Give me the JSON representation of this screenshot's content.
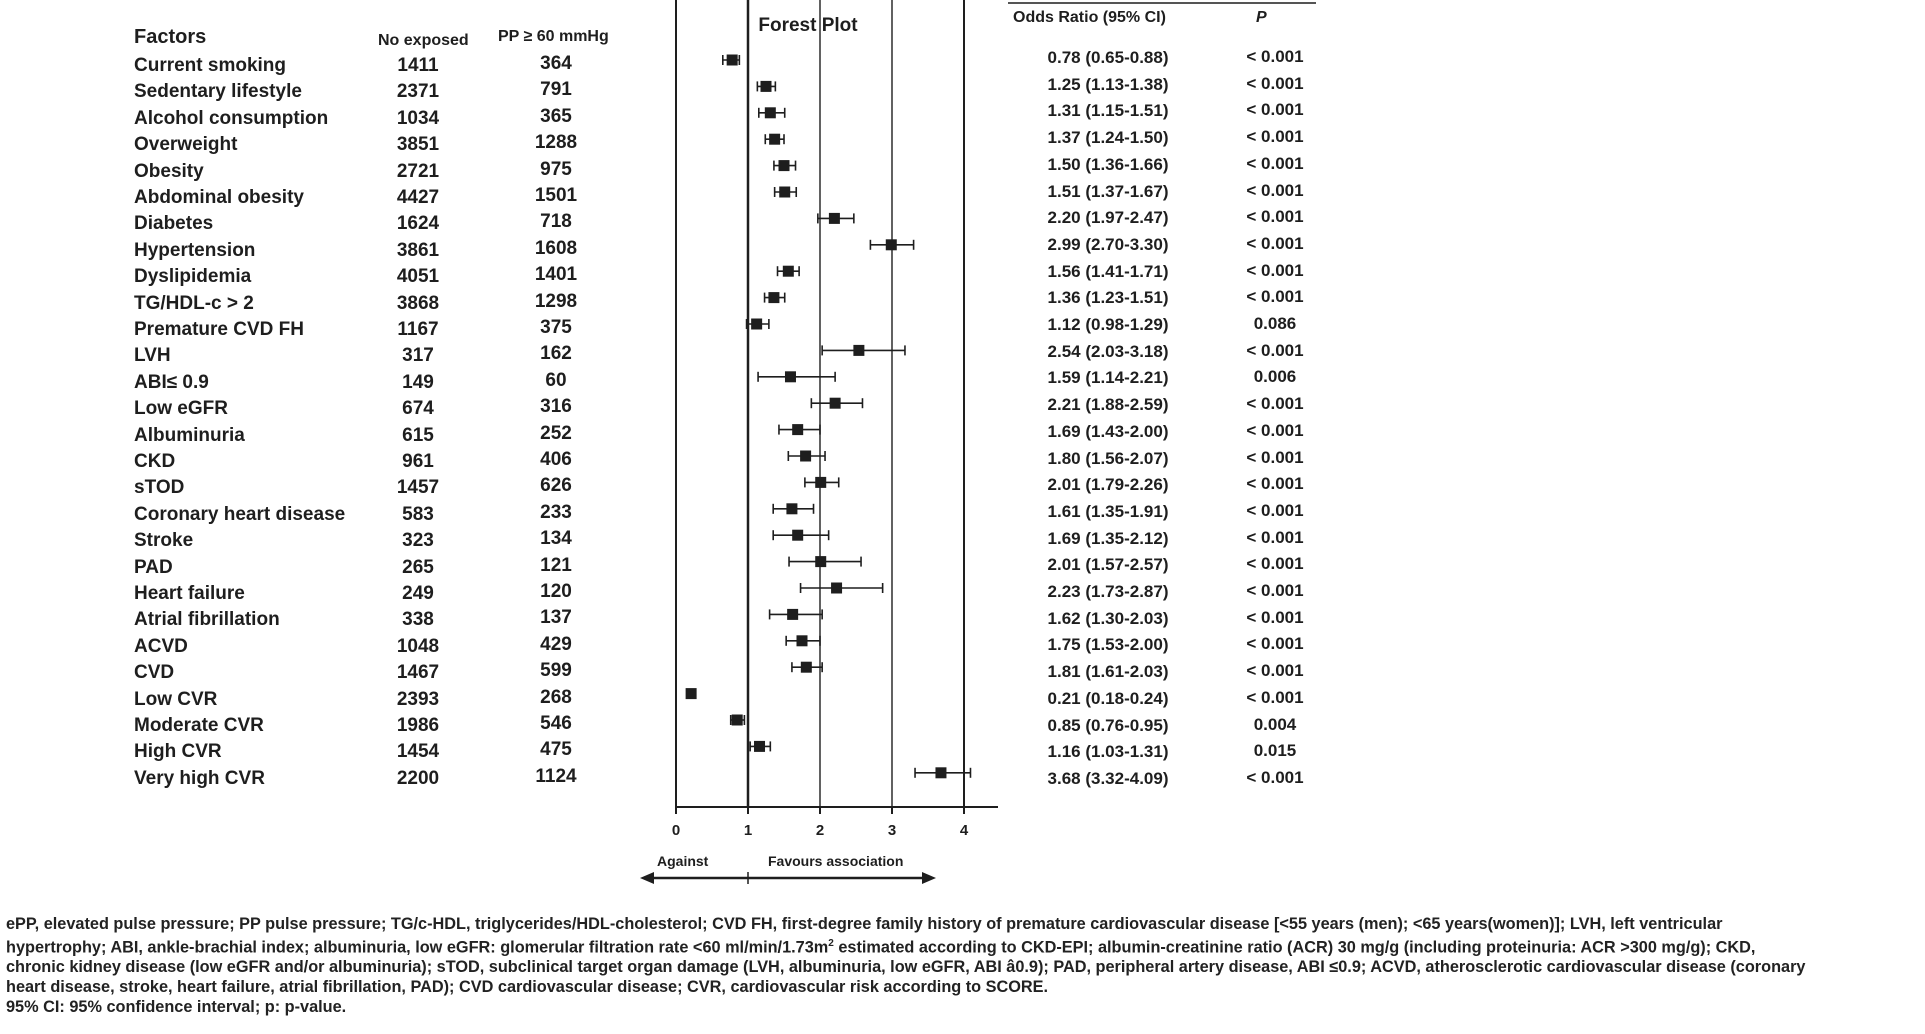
{
  "headers": {
    "factors": "Factors",
    "no_exposed": "No exposed",
    "pp": "PP ≥ 60 mmHg",
    "odds_ratio": "Odds Ratio (95% CI)",
    "p": "P"
  },
  "rows": [
    {
      "factor": "Current smoking",
      "no_exposed": "1411",
      "pp": "364",
      "or_text": "0.78 (0.65-0.88)",
      "p": "< 0.001"
    },
    {
      "factor": "Sedentary lifestyle",
      "no_exposed": "2371",
      "pp": "791",
      "or_text": "1.25 (1.13-1.38)",
      "p": "< 0.001"
    },
    {
      "factor": "Alcohol consumption",
      "no_exposed": "1034",
      "pp": "365",
      "or_text": "1.31 (1.15-1.51)",
      "p": "< 0.001"
    },
    {
      "factor": "Overweight",
      "no_exposed": "3851",
      "pp": "1288",
      "or_text": "1.37 (1.24-1.50)",
      "p": "< 0.001"
    },
    {
      "factor": "Obesity",
      "no_exposed": "2721",
      "pp": "975",
      "or_text": "1.50 (1.36-1.66)",
      "p": "< 0.001"
    },
    {
      "factor": "Abdominal obesity",
      "no_exposed": "4427",
      "pp": "1501",
      "or_text": "1.51 (1.37-1.67)",
      "p": "< 0.001"
    },
    {
      "factor": "Diabetes",
      "no_exposed": "1624",
      "pp": "718",
      "or_text": "2.20 (1.97-2.47)",
      "p": "< 0.001"
    },
    {
      "factor": "Hypertension",
      "no_exposed": "3861",
      "pp": "1608",
      "or_text": "2.99 (2.70-3.30)",
      "p": "< 0.001"
    },
    {
      "factor": "Dyslipidemia",
      "no_exposed": "4051",
      "pp": "1401",
      "or_text": "1.56 (1.41-1.71)",
      "p": "< 0.001"
    },
    {
      "factor": "TG/HDL-c > 2",
      "no_exposed": "3868",
      "pp": "1298",
      "or_text": "1.36 (1.23-1.51)",
      "p": "< 0.001"
    },
    {
      "factor": "Premature CVD FH",
      "no_exposed": "1167",
      "pp": "375",
      "or_text": "1.12 (0.98-1.29)",
      "p": "0.086"
    },
    {
      "factor": "LVH",
      "no_exposed": "317",
      "pp": "162",
      "or_text": "2.54 (2.03-3.18)",
      "p": "< 0.001"
    },
    {
      "factor": "ABI≤ 0.9",
      "no_exposed": "149",
      "pp": "60",
      "or_text": "1.59 (1.14-2.21)",
      "p": "0.006"
    },
    {
      "factor": "Low eGFR",
      "no_exposed": "674",
      "pp": "316",
      "or_text": "2.21 (1.88-2.59)",
      "p": "< 0.001"
    },
    {
      "factor": "Albuminuria",
      "no_exposed": "615",
      "pp": "252",
      "or_text": "1.69 (1.43-2.00)",
      "p": "< 0.001"
    },
    {
      "factor": "CKD",
      "no_exposed": "961",
      "pp": "406",
      "or_text": "1.80 (1.56-2.07)",
      "p": "< 0.001"
    },
    {
      "factor": "sTOD",
      "no_exposed": "1457",
      "pp": "626",
      "or_text": "2.01 (1.79-2.26)",
      "p": "< 0.001"
    },
    {
      "factor": "Coronary heart disease",
      "no_exposed": "583",
      "pp": "233",
      "or_text": "1.61 (1.35-1.91)",
      "p": "< 0.001"
    },
    {
      "factor": "Stroke",
      "no_exposed": "323",
      "pp": "134",
      "or_text": "1.69 (1.35-2.12)",
      "p": "< 0.001"
    },
    {
      "factor": "PAD",
      "no_exposed": "265",
      "pp": "121",
      "or_text": "2.01 (1.57-2.57)",
      "p": "< 0.001"
    },
    {
      "factor": "Heart failure",
      "no_exposed": "249",
      "pp": "120",
      "or_text": "2.23 (1.73-2.87)",
      "p": "< 0.001"
    },
    {
      "factor": "Atrial fibrillation",
      "no_exposed": "338",
      "pp": "137",
      "or_text": "1.62 (1.30-2.03)",
      "p": "< 0.001"
    },
    {
      "factor": "ACVD",
      "no_exposed": "1048",
      "pp": "429",
      "or_text": "1.75 (1.53-2.00)",
      "p": "< 0.001"
    },
    {
      "factor": "CVD",
      "no_exposed": "1467",
      "pp": "599",
      "or_text": "1.81 (1.61-2.03)",
      "p": "< 0.001"
    },
    {
      "factor": "Low CVR",
      "no_exposed": "2393",
      "pp": "268",
      "or_text": "0.21 (0.18-0.24)",
      "p": "< 0.001"
    },
    {
      "factor": "Moderate CVR",
      "no_exposed": "1986",
      "pp": "546",
      "or_text": "0.85 (0.76-0.95)",
      "p": "0.004"
    },
    {
      "factor": "High CVR",
      "no_exposed": "1454",
      "pp": "475",
      "or_text": "1.16 (1.03-1.31)",
      "p": "0.015"
    },
    {
      "factor": "Very high CVR",
      "no_exposed": "2200",
      "pp": "1124",
      "or_text": "3.68 (3.32-4.09)",
      "p": "< 0.001"
    }
  ],
  "chart_data": {
    "type": "forest",
    "title": "Forest Plot",
    "x_ticks": [
      "0",
      "1",
      "2",
      "3",
      "4"
    ],
    "xlim": [
      0,
      4.5
    ],
    "reference_line": 1,
    "gridlines": [
      2,
      3
    ],
    "left_label": "Against",
    "right_label": "Favours association",
    "points": [
      {
        "or": 0.78,
        "lo": 0.65,
        "hi": 0.88
      },
      {
        "or": 1.25,
        "lo": 1.13,
        "hi": 1.38
      },
      {
        "or": 1.31,
        "lo": 1.15,
        "hi": 1.51
      },
      {
        "or": 1.37,
        "lo": 1.24,
        "hi": 1.5
      },
      {
        "or": 1.5,
        "lo": 1.36,
        "hi": 1.66
      },
      {
        "or": 1.51,
        "lo": 1.37,
        "hi": 1.67
      },
      {
        "or": 2.2,
        "lo": 1.97,
        "hi": 2.47
      },
      {
        "or": 2.99,
        "lo": 2.7,
        "hi": 3.3
      },
      {
        "or": 1.56,
        "lo": 1.41,
        "hi": 1.71
      },
      {
        "or": 1.36,
        "lo": 1.23,
        "hi": 1.51
      },
      {
        "or": 1.12,
        "lo": 0.98,
        "hi": 1.29
      },
      {
        "or": 2.54,
        "lo": 2.03,
        "hi": 3.18
      },
      {
        "or": 1.59,
        "lo": 1.14,
        "hi": 2.21
      },
      {
        "or": 2.21,
        "lo": 1.88,
        "hi": 2.59
      },
      {
        "or": 1.69,
        "lo": 1.43,
        "hi": 2.0
      },
      {
        "or": 1.8,
        "lo": 1.56,
        "hi": 2.07
      },
      {
        "or": 2.01,
        "lo": 1.79,
        "hi": 2.26
      },
      {
        "or": 1.61,
        "lo": 1.35,
        "hi": 1.91
      },
      {
        "or": 1.69,
        "lo": 1.35,
        "hi": 2.12
      },
      {
        "or": 2.01,
        "lo": 1.57,
        "hi": 2.57
      },
      {
        "or": 2.23,
        "lo": 1.73,
        "hi": 2.87
      },
      {
        "or": 1.62,
        "lo": 1.3,
        "hi": 2.03
      },
      {
        "or": 1.75,
        "lo": 1.53,
        "hi": 2.0
      },
      {
        "or": 1.81,
        "lo": 1.61,
        "hi": 2.03
      },
      {
        "or": 0.21,
        "lo": 0.18,
        "hi": 0.24
      },
      {
        "or": 0.85,
        "lo": 0.76,
        "hi": 0.95
      },
      {
        "or": 1.16,
        "lo": 1.03,
        "hi": 1.31
      },
      {
        "or": 3.68,
        "lo": 3.32,
        "hi": 4.09
      }
    ]
  },
  "footnote": {
    "line1": "ePP, elevated pulse pressure; PP pulse pressure; TG/c-HDL, triglycerides/HDL-cholesterol; CVD FH, first-degree family history of premature cardiovascular disease [<55 years (men); <65 years(women)]; LVH, left ventricular",
    "line2a": "hypertrophy; ABI, ankle-brachial index; albuminuria, low eGFR: glomerular filtration rate <60 ml/min/1.73m",
    "line2_sup": "2",
    "line2b": " estimated according to CKD-EPI; albumin-creatinine ratio (ACR) 30 mg/g (including proteinuria: ACR >300 mg/g); CKD,",
    "line3": "chronic kidney disease (low eGFR and/or albuminuria); sTOD, subclinical target organ damage (LVH, albuminuria, low eGFR, ABI â0.9); PAD, peripheral artery disease, ABI ≤0.9; ACVD, atherosclerotic cardiovascular disease  (coronary",
    "line4": "heart disease, stroke, heart failure, atrial fibrillation, PAD); CVD cardiovascular disease; CVR, cardiovascular risk according to SCORE.",
    "line5": "95% CI: 95% confidence interval; p: p-value."
  }
}
